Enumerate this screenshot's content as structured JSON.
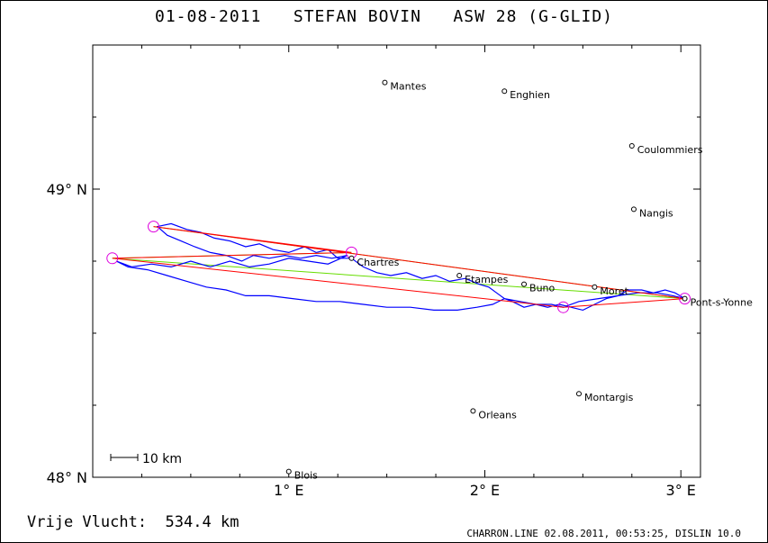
{
  "header": {
    "title": "01-08-2011   STEFAN BOVIN   ASW 28 (G-GLID)"
  },
  "map": {
    "lon_range": [
      0.0,
      3.1
    ],
    "lat_range": [
      48.0,
      49.5
    ],
    "x_ticks": [
      {
        "value": 1,
        "label": "1° E"
      },
      {
        "value": 2,
        "label": "2° E"
      },
      {
        "value": 3,
        "label": "3° E"
      }
    ],
    "y_ticks": [
      {
        "value": 48,
        "label": "48° N"
      },
      {
        "value": 49,
        "label": "49° N"
      }
    ],
    "scale_bar": {
      "label": "10 km",
      "km": 10
    },
    "places": [
      {
        "name": "Mantes",
        "lon": 1.49,
        "lat": 49.37
      },
      {
        "name": "Enghien",
        "lon": 2.1,
        "lat": 49.34
      },
      {
        "name": "Coulommiers",
        "lon": 2.75,
        "lat": 49.15
      },
      {
        "name": "Nangis",
        "lon": 2.76,
        "lat": 48.93
      },
      {
        "name": "Chartres",
        "lon": 1.32,
        "lat": 48.76
      },
      {
        "name": "Etampes",
        "lon": 1.87,
        "lat": 48.7
      },
      {
        "name": "Buno",
        "lon": 2.2,
        "lat": 48.67
      },
      {
        "name": "Moret",
        "lon": 2.56,
        "lat": 48.66
      },
      {
        "name": "Pont-s-Yonne",
        "lon": 3.02,
        "lat": 48.62
      },
      {
        "name": "Montargis",
        "lon": 2.48,
        "lat": 48.29
      },
      {
        "name": "Orleans",
        "lon": 1.94,
        "lat": 48.23
      },
      {
        "name": "Blois",
        "lon": 1.0,
        "lat": 48.02
      }
    ],
    "turnpoints": [
      {
        "lon": 0.31,
        "lat": 48.87
      },
      {
        "lon": 1.32,
        "lat": 48.78
      },
      {
        "lon": 0.1,
        "lat": 48.76
      },
      {
        "lon": 2.4,
        "lat": 48.59
      },
      {
        "lon": 3.02,
        "lat": 48.62
      }
    ],
    "task_red": [
      [
        3.02,
        48.62
      ],
      [
        0.31,
        48.87
      ],
      [
        1.32,
        48.78
      ],
      [
        0.1,
        48.76
      ],
      [
        2.4,
        48.59
      ],
      [
        3.02,
        48.62
      ]
    ],
    "task_green": [
      [
        0.31,
        48.87
      ],
      [
        3.02,
        48.62
      ],
      [
        0.1,
        48.76
      ],
      [
        1.32,
        48.78
      ]
    ],
    "track": [
      [
        3.02,
        48.62
      ],
      [
        2.97,
        48.64
      ],
      [
        2.92,
        48.65
      ],
      [
        2.86,
        48.64
      ],
      [
        2.8,
        48.65
      ],
      [
        2.73,
        48.65
      ],
      [
        2.68,
        48.63
      ],
      [
        2.62,
        48.62
      ],
      [
        2.56,
        48.6
      ],
      [
        2.5,
        48.58
      ],
      [
        2.44,
        48.59
      ],
      [
        2.38,
        48.6
      ],
      [
        2.32,
        48.59
      ],
      [
        2.26,
        48.6
      ],
      [
        2.2,
        48.59
      ],
      [
        2.14,
        48.61
      ],
      [
        2.1,
        48.62
      ],
      [
        2.06,
        48.64
      ],
      [
        2.02,
        48.66
      ],
      [
        1.97,
        48.67
      ],
      [
        1.9,
        48.69
      ],
      [
        1.82,
        48.68
      ],
      [
        1.75,
        48.7
      ],
      [
        1.68,
        48.69
      ],
      [
        1.6,
        48.71
      ],
      [
        1.52,
        48.7
      ],
      [
        1.45,
        48.71
      ],
      [
        1.38,
        48.73
      ],
      [
        1.32,
        48.76
      ],
      [
        1.25,
        48.76
      ],
      [
        1.2,
        48.79
      ],
      [
        1.14,
        48.78
      ],
      [
        1.08,
        48.8
      ],
      [
        1.0,
        48.78
      ],
      [
        0.92,
        48.79
      ],
      [
        0.85,
        48.81
      ],
      [
        0.78,
        48.8
      ],
      [
        0.7,
        48.82
      ],
      [
        0.62,
        48.83
      ],
      [
        0.55,
        48.85
      ],
      [
        0.48,
        48.86
      ],
      [
        0.4,
        48.88
      ],
      [
        0.33,
        48.87
      ],
      [
        0.38,
        48.84
      ],
      [
        0.45,
        48.82
      ],
      [
        0.52,
        48.8
      ],
      [
        0.6,
        48.78
      ],
      [
        0.68,
        48.77
      ],
      [
        0.76,
        48.75
      ],
      [
        0.82,
        48.77
      ],
      [
        0.9,
        48.76
      ],
      [
        0.98,
        48.77
      ],
      [
        1.06,
        48.76
      ],
      [
        1.14,
        48.77
      ],
      [
        1.22,
        48.76
      ],
      [
        1.3,
        48.77
      ],
      [
        1.2,
        48.74
      ],
      [
        1.1,
        48.75
      ],
      [
        1.0,
        48.76
      ],
      [
        0.9,
        48.74
      ],
      [
        0.8,
        48.73
      ],
      [
        0.7,
        48.75
      ],
      [
        0.6,
        48.73
      ],
      [
        0.5,
        48.75
      ],
      [
        0.4,
        48.73
      ],
      [
        0.3,
        48.74
      ],
      [
        0.2,
        48.73
      ],
      [
        0.12,
        48.75
      ],
      [
        0.18,
        48.73
      ],
      [
        0.28,
        48.72
      ],
      [
        0.38,
        48.7
      ],
      [
        0.48,
        48.68
      ],
      [
        0.58,
        48.66
      ],
      [
        0.68,
        48.65
      ],
      [
        0.78,
        48.63
      ],
      [
        0.9,
        48.63
      ],
      [
        1.02,
        48.62
      ],
      [
        1.14,
        48.61
      ],
      [
        1.26,
        48.61
      ],
      [
        1.38,
        48.6
      ],
      [
        1.5,
        48.59
      ],
      [
        1.62,
        48.59
      ],
      [
        1.74,
        48.58
      ],
      [
        1.86,
        48.58
      ],
      [
        1.96,
        48.59
      ],
      [
        2.04,
        48.6
      ],
      [
        2.1,
        48.62
      ],
      [
        2.18,
        48.61
      ],
      [
        2.26,
        48.6
      ],
      [
        2.34,
        48.6
      ],
      [
        2.4,
        48.59
      ],
      [
        2.48,
        48.61
      ],
      [
        2.58,
        48.62
      ],
      [
        2.68,
        48.63
      ],
      [
        2.78,
        48.64
      ],
      [
        2.88,
        48.64
      ],
      [
        2.96,
        48.63
      ],
      [
        3.02,
        48.62
      ]
    ]
  },
  "footer": {
    "distance_label": "Vrije Vlucht:",
    "distance_value": "534.4 km",
    "source": "CHARRON.LINE 02.08.2011, 00:53:25, DISLIN 10.0"
  },
  "colors": {
    "track": "#0000ff",
    "task_red": "#ff0000",
    "task_green": "#66dd00",
    "turnpoint": "#dd00dd",
    "axis": "#000000"
  }
}
